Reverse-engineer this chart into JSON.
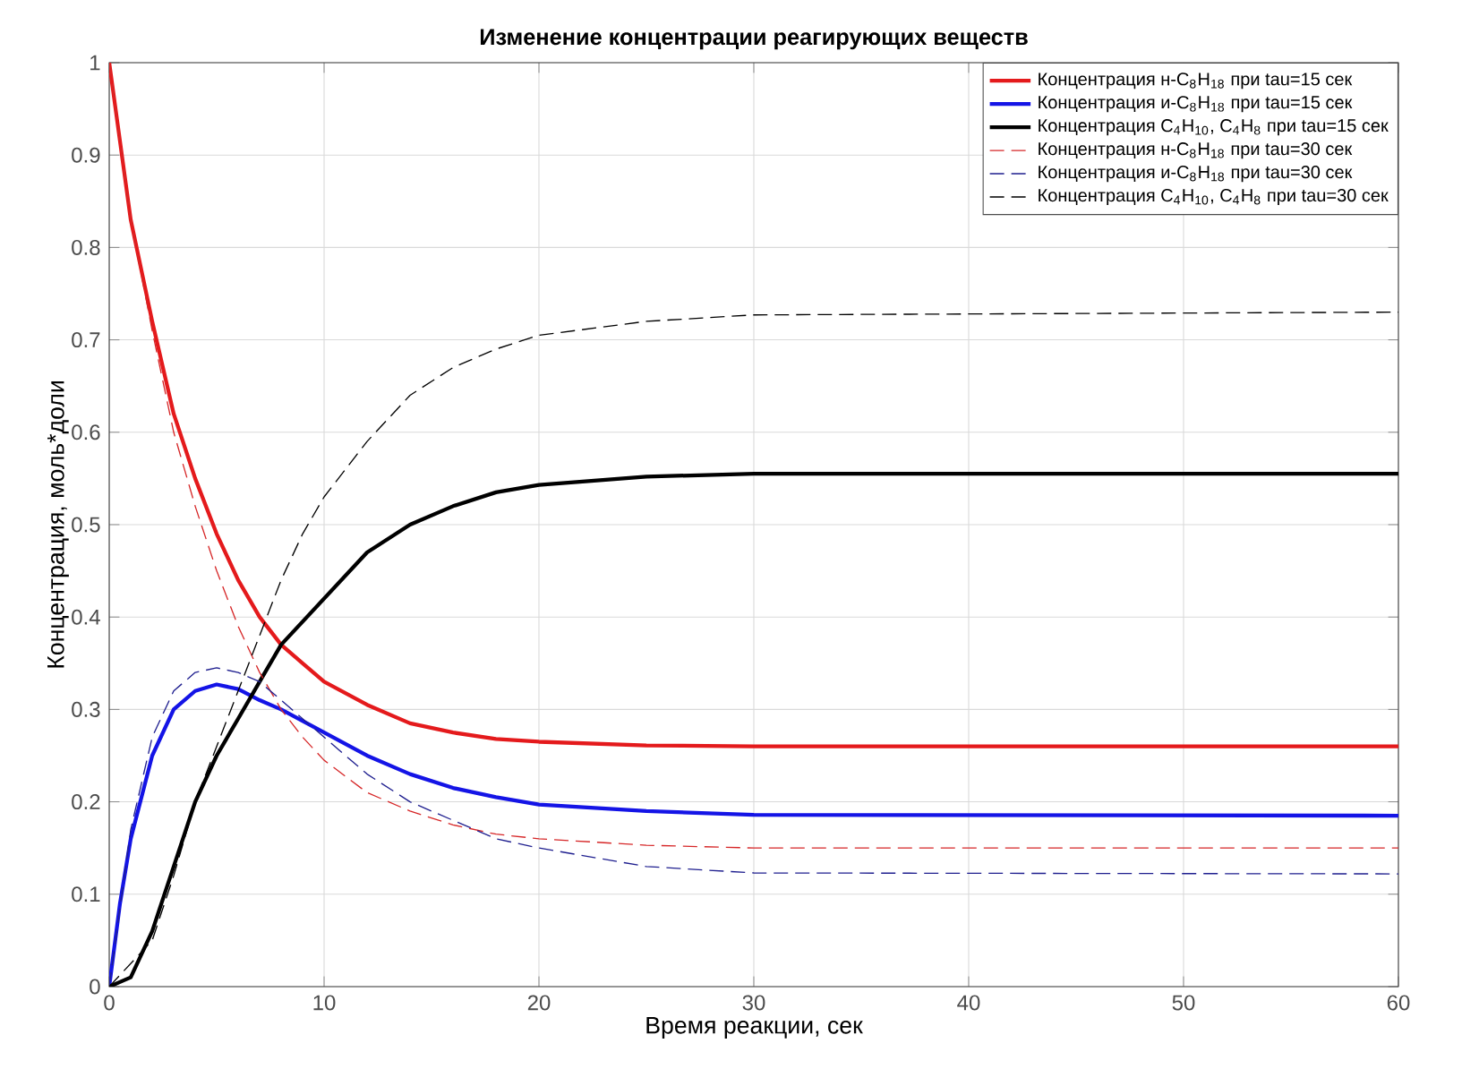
{
  "chart_data": {
    "type": "line",
    "title": "Изменение концентрации реагирующих веществ",
    "xlabel": "Время реакции, сек",
    "ylabel": "Концентрация, моль*доли",
    "xlim": [
      0,
      60
    ],
    "ylim": [
      0,
      1
    ],
    "xticks": [
      0,
      10,
      20,
      30,
      40,
      50,
      60
    ],
    "yticks": [
      0,
      0.1,
      0.2,
      0.3,
      0.4,
      0.5,
      0.6,
      0.7,
      0.8,
      0.9,
      1
    ],
    "grid": true,
    "legend": "top right",
    "series": [
      {
        "name": "Концентрация н-C$_{8}$H$_{18}$ при tau=15 сек",
        "color": "#e41a1c",
        "line_style": "solid",
        "x": [
          0,
          1,
          2,
          3,
          4,
          5,
          6,
          7,
          8,
          9,
          10,
          12,
          14,
          16,
          18,
          20,
          25,
          30,
          60
        ],
        "values": [
          1,
          0.83,
          0.72,
          0.62,
          0.55,
          0.49,
          0.44,
          0.4,
          0.37,
          0.35,
          0.33,
          0.305,
          0.285,
          0.275,
          0.268,
          0.265,
          0.261,
          0.26,
          0.26
        ]
      },
      {
        "name": "Концентрация и-C$_{8}$H$_{18}$ при tau=15 сек",
        "color": "#1414e6",
        "line_style": "solid",
        "x": [
          0,
          0.5,
          1,
          2,
          3,
          4,
          5,
          6,
          7,
          8,
          10,
          12,
          14,
          16,
          18,
          20,
          25,
          30,
          60
        ],
        "values": [
          0,
          0.09,
          0.16,
          0.25,
          0.3,
          0.32,
          0.327,
          0.322,
          0.31,
          0.3,
          0.275,
          0.25,
          0.23,
          0.215,
          0.205,
          0.197,
          0.19,
          0.186,
          0.185
        ]
      },
      {
        "name": "Концентрация C$_{4}$H$_{10}$, C$_{4}$H$_{8}$ при tau=15 сек",
        "color": "#000000",
        "line_style": "solid",
        "x": [
          0,
          1,
          2,
          3,
          4,
          5,
          6,
          7,
          8,
          10,
          12,
          14,
          16,
          18,
          20,
          25,
          30,
          60
        ],
        "values": [
          0,
          0.01,
          0.06,
          0.13,
          0.2,
          0.25,
          0.29,
          0.33,
          0.37,
          0.42,
          0.47,
          0.5,
          0.52,
          0.535,
          0.543,
          0.552,
          0.555,
          0.555
        ]
      },
      {
        "name": "Концентрация н-C$_{8}$H$_{18}$ при tau=30 сек",
        "color": "#d62728",
        "line_style": "dashed",
        "x": [
          0,
          1,
          2,
          3,
          4,
          5,
          6,
          7,
          8,
          9,
          10,
          12,
          14,
          16,
          18,
          20,
          25,
          30,
          60
        ],
        "values": [
          1,
          0.83,
          0.71,
          0.6,
          0.52,
          0.45,
          0.39,
          0.34,
          0.3,
          0.27,
          0.245,
          0.21,
          0.19,
          0.175,
          0.165,
          0.16,
          0.153,
          0.15,
          0.15
        ]
      },
      {
        "name": "Концентрация и-C$_{8}$H$_{18}$ при tau=30 сек",
        "color": "#1f1f8f",
        "line_style": "dashed",
        "x": [
          0,
          1,
          2,
          3,
          4,
          5,
          6,
          7,
          8,
          10,
          12,
          14,
          16,
          18,
          20,
          25,
          30,
          60
        ],
        "values": [
          0,
          0.17,
          0.27,
          0.32,
          0.34,
          0.345,
          0.34,
          0.33,
          0.31,
          0.27,
          0.23,
          0.2,
          0.18,
          0.16,
          0.15,
          0.13,
          0.123,
          0.122
        ]
      },
      {
        "name": "Концентрация C$_{4}$H$_{10}$, C$_{4}$H$_{8}$ при tau=30 сек",
        "color": "#000000",
        "line_style": "dashed",
        "x": [
          0,
          2,
          3,
          4,
          5,
          6,
          7,
          8,
          9,
          10,
          12,
          14,
          16,
          18,
          20,
          25,
          30,
          60
        ],
        "values": [
          0,
          0.05,
          0.12,
          0.2,
          0.26,
          0.32,
          0.38,
          0.44,
          0.49,
          0.53,
          0.59,
          0.64,
          0.67,
          0.69,
          0.705,
          0.72,
          0.727,
          0.73
        ]
      }
    ]
  }
}
